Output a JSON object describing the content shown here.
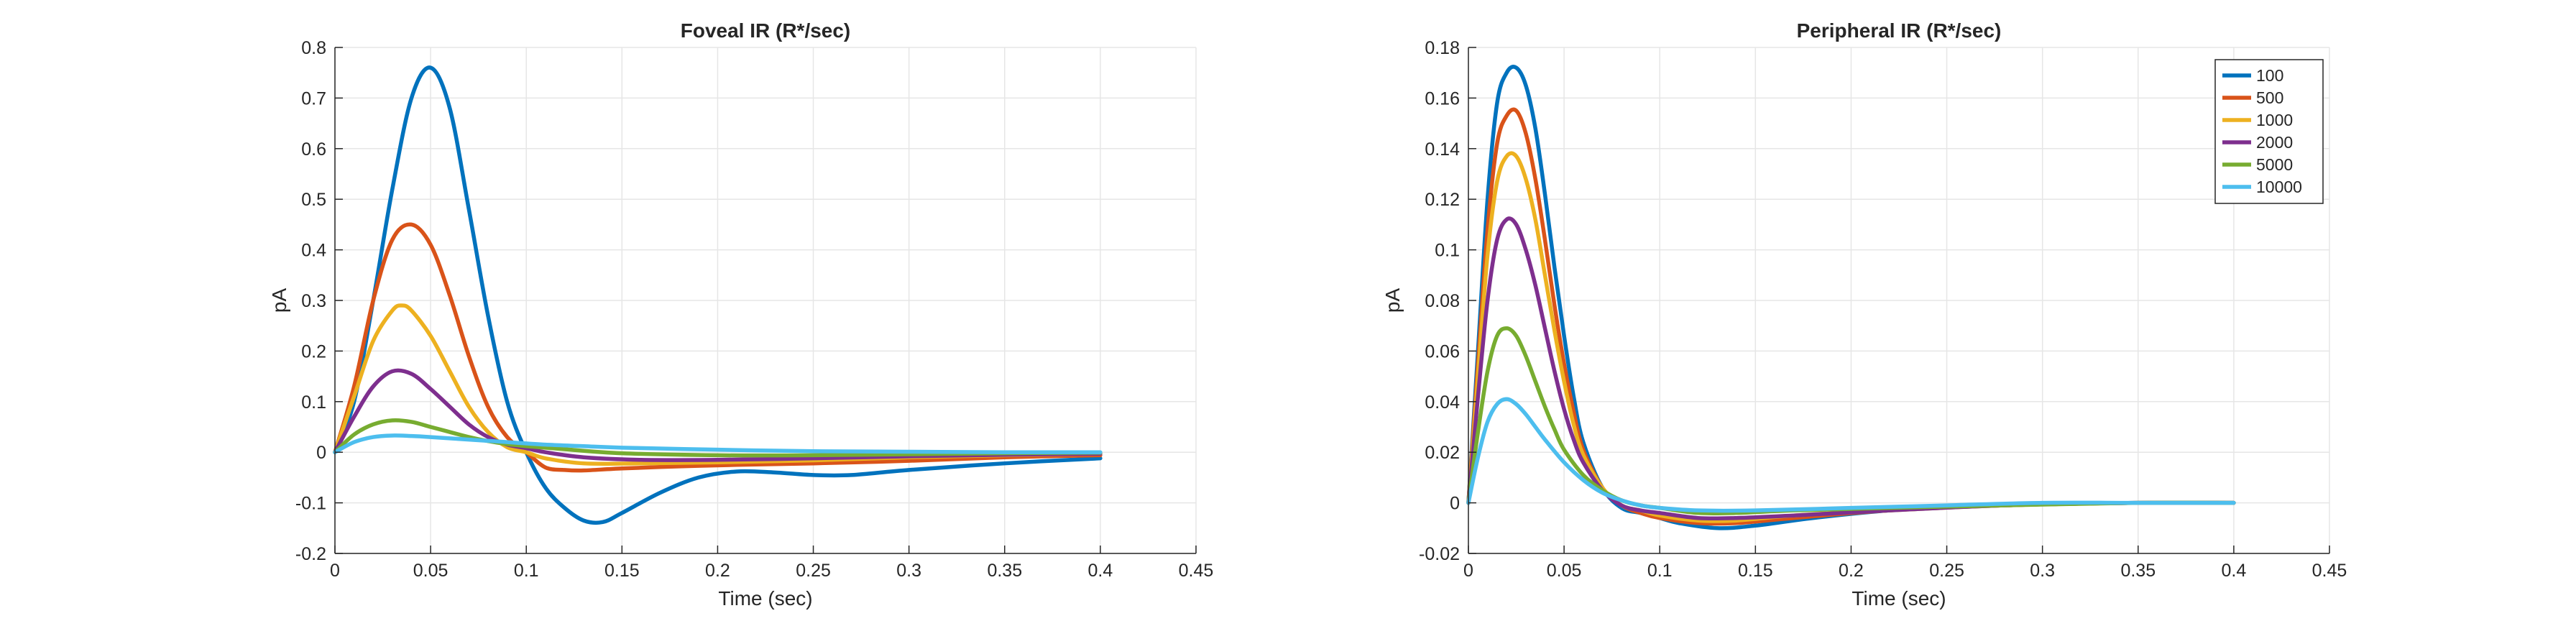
{
  "chart_data": [
    {
      "type": "line",
      "title": "Foveal IR (R*/sec)",
      "xlabel": "Time (sec)",
      "ylabel": "pA",
      "xlim": [
        0,
        0.45
      ],
      "ylim": [
        -0.2,
        0.8
      ],
      "xticks": [
        0,
        0.05,
        0.1,
        0.15,
        0.2,
        0.25,
        0.3,
        0.35,
        0.4,
        0.45
      ],
      "xtick_labels": [
        "0",
        "0.05",
        "0.1",
        "0.15",
        "0.2",
        "0.25",
        "0.3",
        "0.35",
        "0.4",
        "0.45"
      ],
      "yticks": [
        -0.2,
        -0.1,
        0,
        0.1,
        0.2,
        0.3,
        0.4,
        0.5,
        0.6,
        0.7,
        0.8
      ],
      "ytick_labels": [
        "-0.2",
        "-0.1",
        "0",
        "0.1",
        "0.2",
        "0.3",
        "0.4",
        "0.5",
        "0.6",
        "0.7",
        "0.8"
      ],
      "grid": true,
      "legend": null,
      "series": [
        {
          "name": "100",
          "color": "#0072BD",
          "x": [
            0,
            0.01,
            0.02,
            0.03,
            0.04,
            0.05,
            0.06,
            0.07,
            0.08,
            0.09,
            0.1,
            0.11,
            0.12,
            0.13,
            0.14,
            0.15,
            0.17,
            0.19,
            0.21,
            0.23,
            0.25,
            0.27,
            0.3,
            0.35,
            0.4
          ],
          "y": [
            0,
            0.1,
            0.3,
            0.52,
            0.7,
            0.76,
            0.68,
            0.48,
            0.27,
            0.1,
            0.0,
            -0.07,
            -0.11,
            -0.135,
            -0.138,
            -0.12,
            -0.08,
            -0.05,
            -0.038,
            -0.04,
            -0.045,
            -0.045,
            -0.035,
            -0.022,
            -0.012
          ]
        },
        {
          "name": "500",
          "color": "#D95319",
          "x": [
            0,
            0.01,
            0.02,
            0.03,
            0.04,
            0.05,
            0.06,
            0.07,
            0.08,
            0.09,
            0.1,
            0.11,
            0.12,
            0.13,
            0.15,
            0.18,
            0.21,
            0.25,
            0.3,
            0.35,
            0.4
          ],
          "y": [
            0,
            0.13,
            0.3,
            0.42,
            0.45,
            0.41,
            0.31,
            0.19,
            0.09,
            0.03,
            0.0,
            -0.03,
            -0.035,
            -0.036,
            -0.032,
            -0.028,
            -0.025,
            -0.022,
            -0.017,
            -0.01,
            -0.006
          ]
        },
        {
          "name": "1000",
          "color": "#EDB120",
          "x": [
            0,
            0.01,
            0.02,
            0.03,
            0.035,
            0.04,
            0.05,
            0.06,
            0.07,
            0.08,
            0.09,
            0.1,
            0.11,
            0.13,
            0.16,
            0.2,
            0.25,
            0.3,
            0.35,
            0.4
          ],
          "y": [
            0,
            0.11,
            0.22,
            0.28,
            0.29,
            0.28,
            0.23,
            0.16,
            0.09,
            0.04,
            0.01,
            0.0,
            -0.012,
            -0.022,
            -0.022,
            -0.02,
            -0.016,
            -0.01,
            -0.006,
            -0.003
          ]
        },
        {
          "name": "2000",
          "color": "#7E2F8E",
          "x": [
            0,
            0.01,
            0.02,
            0.03,
            0.04,
            0.05,
            0.06,
            0.07,
            0.08,
            0.09,
            0.1,
            0.11,
            0.13,
            0.16,
            0.2,
            0.25,
            0.3,
            0.35,
            0.4
          ],
          "y": [
            0,
            0.07,
            0.13,
            0.16,
            0.155,
            0.125,
            0.09,
            0.055,
            0.03,
            0.015,
            0.008,
            0.0,
            -0.01,
            -0.015,
            -0.015,
            -0.012,
            -0.008,
            -0.005,
            -0.003
          ]
        },
        {
          "name": "5000",
          "color": "#77AC30",
          "x": [
            0,
            0.01,
            0.02,
            0.03,
            0.04,
            0.05,
            0.06,
            0.07,
            0.08,
            0.09,
            0.1,
            0.12,
            0.15,
            0.2,
            0.25,
            0.3,
            0.35,
            0.4
          ],
          "y": [
            0,
            0.035,
            0.055,
            0.063,
            0.06,
            0.05,
            0.04,
            0.03,
            0.022,
            0.016,
            0.012,
            0.006,
            -0.002,
            -0.006,
            -0.006,
            -0.004,
            -0.002,
            -0.001
          ]
        },
        {
          "name": "10000",
          "color": "#4DBEEE",
          "x": [
            0,
            0.01,
            0.02,
            0.03,
            0.04,
            0.05,
            0.07,
            0.09,
            0.11,
            0.13,
            0.15,
            0.2,
            0.25,
            0.3,
            0.35,
            0.4
          ],
          "y": [
            0,
            0.02,
            0.03,
            0.033,
            0.032,
            0.03,
            0.025,
            0.02,
            0.015,
            0.012,
            0.009,
            0.005,
            0.002,
            0.001,
            0.0,
            0.0
          ]
        }
      ]
    },
    {
      "type": "line",
      "title": "Peripheral IR (R*/sec)",
      "xlabel": "Time (sec)",
      "ylabel": "pA",
      "xlim": [
        0,
        0.45
      ],
      "ylim": [
        -0.02,
        0.18
      ],
      "xticks": [
        0,
        0.05,
        0.1,
        0.15,
        0.2,
        0.25,
        0.3,
        0.35,
        0.4,
        0.45
      ],
      "xtick_labels": [
        "0",
        "0.05",
        "0.1",
        "0.15",
        "0.2",
        "0.25",
        "0.3",
        "0.35",
        "0.4",
        "0.45"
      ],
      "yticks": [
        -0.02,
        0,
        0.02,
        0.04,
        0.06,
        0.08,
        0.1,
        0.12,
        0.14,
        0.16,
        0.18
      ],
      "ytick_labels": [
        "-0.02",
        "0",
        "0.02",
        "0.04",
        "0.06",
        "0.08",
        "0.1",
        "0.12",
        "0.14",
        "0.16",
        "0.18"
      ],
      "grid": true,
      "legend": "top-right",
      "series": [
        {
          "name": "100",
          "color": "#0072BD",
          "x": [
            0,
            0.005,
            0.01,
            0.015,
            0.02,
            0.025,
            0.03,
            0.035,
            0.04,
            0.045,
            0.05,
            0.055,
            0.06,
            0.07,
            0.08,
            0.09,
            0.1,
            0.11,
            0.13,
            0.15,
            0.18,
            0.22,
            0.26,
            0.3,
            0.35,
            0.4
          ],
          "y": [
            0,
            0.06,
            0.12,
            0.158,
            0.17,
            0.172,
            0.165,
            0.148,
            0.122,
            0.093,
            0.066,
            0.042,
            0.024,
            0.006,
            -0.002,
            -0.004,
            -0.006,
            -0.008,
            -0.01,
            -0.009,
            -0.006,
            -0.003,
            -0.0015,
            -0.0005,
            0,
            0
          ]
        },
        {
          "name": "500",
          "color": "#D95319",
          "x": [
            0,
            0.005,
            0.01,
            0.015,
            0.02,
            0.025,
            0.03,
            0.035,
            0.04,
            0.045,
            0.05,
            0.055,
            0.06,
            0.07,
            0.08,
            0.09,
            0.1,
            0.12,
            0.14,
            0.17,
            0.22,
            0.28,
            0.35,
            0.4
          ],
          "y": [
            0,
            0.055,
            0.108,
            0.142,
            0.153,
            0.155,
            0.146,
            0.128,
            0.104,
            0.078,
            0.055,
            0.036,
            0.021,
            0.006,
            -0.001,
            -0.004,
            -0.006,
            -0.008,
            -0.008,
            -0.006,
            -0.003,
            -0.001,
            0,
            0
          ]
        },
        {
          "name": "1000",
          "color": "#EDB120",
          "x": [
            0,
            0.005,
            0.01,
            0.015,
            0.02,
            0.025,
            0.03,
            0.035,
            0.04,
            0.045,
            0.05,
            0.055,
            0.06,
            0.07,
            0.08,
            0.09,
            0.1,
            0.12,
            0.14,
            0.17,
            0.22,
            0.28,
            0.35,
            0.4
          ],
          "y": [
            0,
            0.05,
            0.098,
            0.127,
            0.137,
            0.137,
            0.128,
            0.112,
            0.09,
            0.068,
            0.048,
            0.031,
            0.019,
            0.006,
            -0.001,
            -0.003,
            -0.005,
            -0.007,
            -0.007,
            -0.005,
            -0.003,
            -0.001,
            0,
            0
          ]
        },
        {
          "name": "2000",
          "color": "#7E2F8E",
          "x": [
            0,
            0.005,
            0.01,
            0.015,
            0.02,
            0.025,
            0.03,
            0.035,
            0.04,
            0.045,
            0.05,
            0.055,
            0.06,
            0.07,
            0.08,
            0.09,
            0.1,
            0.12,
            0.14,
            0.17,
            0.22,
            0.28,
            0.35,
            0.4
          ],
          "y": [
            0,
            0.042,
            0.08,
            0.104,
            0.112,
            0.11,
            0.1,
            0.086,
            0.069,
            0.052,
            0.037,
            0.025,
            0.016,
            0.005,
            -0.001,
            -0.003,
            -0.004,
            -0.006,
            -0.006,
            -0.005,
            -0.003,
            -0.001,
            0,
            0
          ]
        },
        {
          "name": "5000",
          "color": "#77AC30",
          "x": [
            0,
            0.005,
            0.01,
            0.015,
            0.02,
            0.025,
            0.03,
            0.035,
            0.04,
            0.045,
            0.05,
            0.06,
            0.07,
            0.08,
            0.09,
            0.1,
            0.12,
            0.14,
            0.17,
            0.22,
            0.28,
            0.35,
            0.4
          ],
          "y": [
            0,
            0.028,
            0.052,
            0.066,
            0.069,
            0.066,
            0.058,
            0.048,
            0.038,
            0.029,
            0.021,
            0.011,
            0.005,
            0.001,
            -0.001,
            -0.002,
            -0.004,
            -0.004,
            -0.003,
            -0.002,
            -0.001,
            0,
            0
          ]
        },
        {
          "name": "10000",
          "color": "#4DBEEE",
          "x": [
            0,
            0.005,
            0.01,
            0.015,
            0.02,
            0.025,
            0.03,
            0.035,
            0.04,
            0.05,
            0.06,
            0.07,
            0.08,
            0.09,
            0.1,
            0.12,
            0.15,
            0.2,
            0.25,
            0.3,
            0.35,
            0.4
          ],
          "y": [
            0,
            0.018,
            0.032,
            0.039,
            0.041,
            0.039,
            0.035,
            0.03,
            0.025,
            0.016,
            0.009,
            0.004,
            0.001,
            -0.001,
            -0.002,
            -0.003,
            -0.003,
            -0.002,
            -0.001,
            0,
            0,
            0
          ]
        }
      ]
    }
  ]
}
